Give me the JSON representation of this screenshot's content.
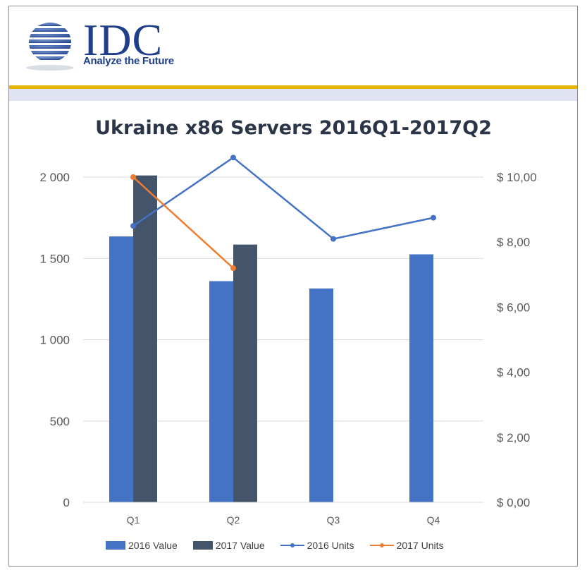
{
  "logo": {
    "word": "IDC",
    "tagline": "Analyze the Future"
  },
  "chart_data": {
    "type": "bar",
    "title": "Ukraine x86 Servers 2016Q1-2017Q2",
    "categories": [
      "Q1",
      "Q2",
      "Q3",
      "Q4"
    ],
    "bar_series": [
      {
        "name": "2016 Value",
        "color": "#4472c4",
        "values": [
          1635,
          1360,
          1315,
          1525
        ]
      },
      {
        "name": "2017 Value",
        "color": "#44546a",
        "values": [
          2010,
          1585,
          null,
          null
        ]
      }
    ],
    "line_series": [
      {
        "name": "2016 Units",
        "color": "#4472c4",
        "values": [
          8.5,
          10.6,
          8.1,
          8.75
        ]
      },
      {
        "name": "2017 Units",
        "color": "#ed7d31",
        "values": [
          10.0,
          7.2,
          null,
          null
        ]
      }
    ],
    "y_left": {
      "min": 0,
      "max": 2000,
      "ticks": [
        0,
        500,
        1000,
        1500,
        2000
      ],
      "tick_labels": [
        "0",
        "500",
        "1 000",
        "1 500",
        "2 000"
      ]
    },
    "y_right": {
      "min": 0,
      "max": 10,
      "ticks": [
        0,
        2,
        4,
        6,
        8,
        10
      ],
      "tick_labels": [
        "$ 0,00",
        "$ 2,00",
        "$ 4,00",
        "$ 6,00",
        "$ 8,00",
        "$ 10,00"
      ]
    },
    "grid": true,
    "legend_position": "bottom"
  }
}
